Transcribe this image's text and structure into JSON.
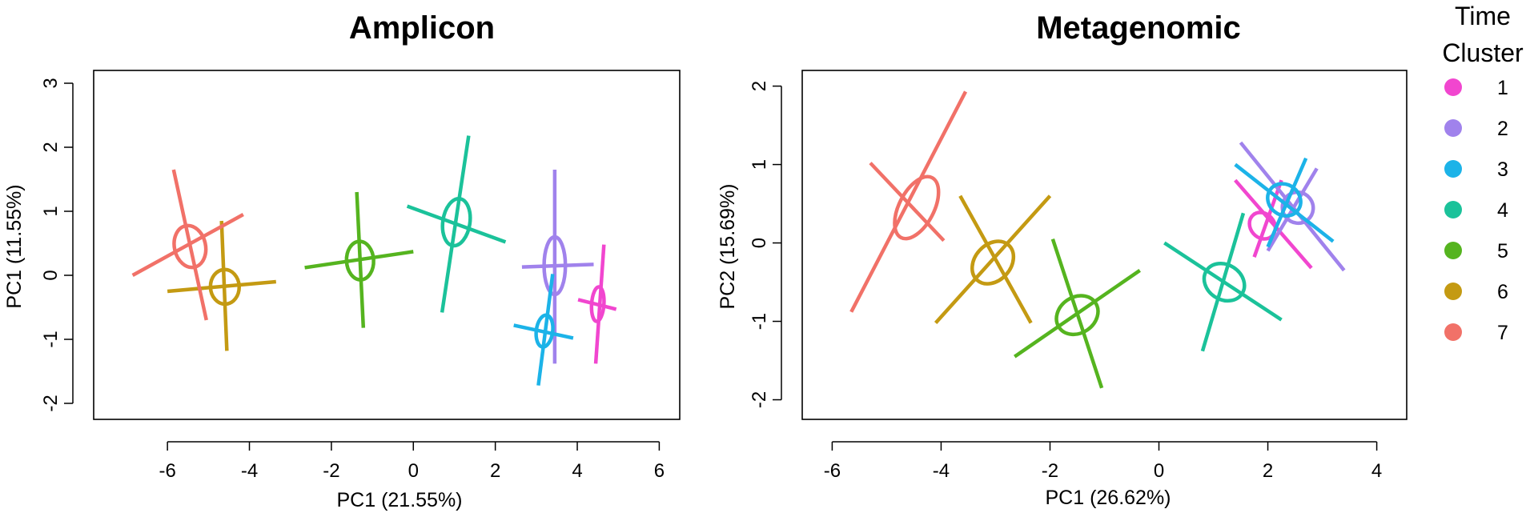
{
  "chart_data": [
    {
      "type": "scatter",
      "title": "Amplicon",
      "xlabel": "PC1 (21.55%)",
      "ylabel": "PC1 (11.55%)",
      "xlim": [
        -7.8,
        6.5
      ],
      "ylim": [
        -2.25,
        3.2
      ],
      "xticks": [
        -6,
        -4,
        -2,
        0,
        2,
        4,
        6
      ],
      "yticks": [
        -2,
        -1,
        0,
        1,
        2,
        3
      ],
      "xtick_labels": [
        "-6",
        "-4",
        "-2",
        "0",
        "2",
        "4",
        "6"
      ],
      "ytick_labels": [
        "-2",
        "-1",
        "0",
        "1",
        "2",
        "3"
      ],
      "grid": false,
      "series": [
        {
          "name": "1",
          "color": "#f146cf",
          "center": [
            4.5,
            -0.45
          ],
          "ellipse_radii": [
            0.15,
            0.27
          ],
          "axis1": [
            [
              4.45,
              -1.38
            ],
            [
              4.65,
              0.48
            ]
          ],
          "axis2": [
            [
              4.02,
              -0.38
            ],
            [
              4.95,
              -0.53
            ]
          ]
        },
        {
          "name": "2",
          "color": "#a082ec",
          "center": [
            3.45,
            0.15
          ],
          "ellipse_radii": [
            0.26,
            0.45
          ],
          "axis1": [
            [
              3.45,
              -1.38
            ],
            [
              3.45,
              1.65
            ]
          ],
          "axis2": [
            [
              2.65,
              0.13
            ],
            [
              4.4,
              0.17
            ]
          ]
        },
        {
          "name": "3",
          "color": "#1cb3e8",
          "center": [
            3.2,
            -0.87
          ],
          "ellipse_radii": [
            0.2,
            0.25
          ],
          "axis1": [
            [
              3.05,
              -1.72
            ],
            [
              3.4,
              0.02
            ]
          ],
          "axis2": [
            [
              2.45,
              -0.78
            ],
            [
              3.9,
              -0.98
            ]
          ]
        },
        {
          "name": "4",
          "color": "#1bc29a",
          "center": [
            1.05,
            0.83
          ],
          "ellipse_radii": [
            0.33,
            0.37
          ],
          "axis1": [
            [
              0.7,
              -0.58
            ],
            [
              1.35,
              2.18
            ]
          ],
          "axis2": [
            [
              -0.15,
              1.08
            ],
            [
              2.25,
              0.52
            ]
          ]
        },
        {
          "name": "5",
          "color": "#55b41f",
          "center": [
            -1.3,
            0.23
          ],
          "ellipse_radii": [
            0.33,
            0.3
          ],
          "axis1": [
            [
              -1.38,
              1.3
            ],
            [
              -1.22,
              -0.82
            ]
          ],
          "axis2": [
            [
              -2.65,
              0.12
            ],
            [
              0,
              0.37
            ]
          ]
        },
        {
          "name": "6",
          "color": "#c49a12",
          "center": [
            -4.6,
            -0.18
          ],
          "ellipse_radii": [
            0.35,
            0.27
          ],
          "axis1": [
            [
              -4.68,
              0.85
            ],
            [
              -4.55,
              -1.18
            ]
          ],
          "axis2": [
            [
              -6.0,
              -0.25
            ],
            [
              -3.35,
              -0.1
            ]
          ]
        },
        {
          "name": "7",
          "color": "#f17168",
          "center": [
            -5.45,
            0.45
          ],
          "ellipse_radii": [
            0.38,
            0.33
          ],
          "axis1": [
            [
              -5.85,
              1.65
            ],
            [
              -5.05,
              -0.7
            ]
          ],
          "axis2": [
            [
              -6.85,
              0.0
            ],
            [
              -4.15,
              0.95
            ]
          ]
        }
      ]
    },
    {
      "type": "scatter",
      "title": "Metagenomic",
      "xlabel": "PC1 (26.62%)",
      "ylabel": "PC2 (15.69%)",
      "xlim": [
        -6.55,
        4.55
      ],
      "ylim": [
        -2.25,
        2.2
      ],
      "xticks": [
        -6,
        -4,
        -2,
        0,
        2,
        4
      ],
      "yticks": [
        -2,
        -1,
        0,
        1,
        2
      ],
      "xtick_labels": [
        "-6",
        "-4",
        "-2",
        "0",
        "2",
        "4"
      ],
      "ytick_labels": [
        "-2",
        "-1",
        "0",
        "1",
        "2"
      ],
      "grid": false,
      "series": [
        {
          "name": "1",
          "color": "#f146cf",
          "center": [
            1.9,
            0.22
          ],
          "ellipse_radii": [
            0.22,
            0.18
          ],
          "axis1": [
            [
              1.4,
              0.8
            ],
            [
              2.8,
              -0.32
            ]
          ],
          "axis2": [
            [
              1.75,
              -0.18
            ],
            [
              2.25,
              0.8
            ]
          ]
        },
        {
          "name": "2",
          "color": "#a082ec",
          "center": [
            2.55,
            0.45
          ],
          "ellipse_radii": [
            0.28,
            0.2
          ],
          "axis1": [
            [
              1.5,
              1.28
            ],
            [
              3.4,
              -0.35
            ]
          ],
          "axis2": [
            [
              2.0,
              -0.1
            ],
            [
              2.9,
              0.95
            ]
          ]
        },
        {
          "name": "3",
          "color": "#1cb3e8",
          "center": [
            2.3,
            0.55
          ],
          "ellipse_radii": [
            0.28,
            0.22
          ],
          "axis1": [
            [
              1.4,
              1.0
            ],
            [
              3.2,
              0.02
            ]
          ],
          "axis2": [
            [
              2.0,
              -0.05
            ],
            [
              2.7,
              1.08
            ]
          ]
        },
        {
          "name": "4",
          "color": "#1bc29a",
          "center": [
            1.2,
            -0.5
          ],
          "ellipse_radii": [
            0.32,
            0.27
          ],
          "axis1": [
            [
              0.1,
              0.0
            ],
            [
              2.25,
              -0.98
            ]
          ],
          "axis2": [
            [
              0.8,
              -1.38
            ],
            [
              1.55,
              0.38
            ]
          ]
        },
        {
          "name": "5",
          "color": "#55b41f",
          "center": [
            -1.5,
            -0.92
          ],
          "ellipse_radii": [
            0.33,
            0.28
          ],
          "axis1": [
            [
              -2.65,
              -1.45
            ],
            [
              -0.35,
              -0.35
            ]
          ],
          "axis2": [
            [
              -1.95,
              0.05
            ],
            [
              -1.05,
              -1.85
            ]
          ]
        },
        {
          "name": "6",
          "color": "#c49a12",
          "center": [
            -3.05,
            -0.25
          ],
          "ellipse_radii": [
            0.33,
            0.3
          ],
          "axis1": [
            [
              -4.1,
              -1.02
            ],
            [
              -2.0,
              0.6
            ]
          ],
          "axis2": [
            [
              -3.65,
              0.6
            ],
            [
              -2.35,
              -1.02
            ]
          ]
        },
        {
          "name": "7",
          "color": "#f17168",
          "center": [
            -4.45,
            0.45
          ],
          "ellipse_radii": [
            0.32,
            0.43
          ],
          "axis1": [
            [
              -5.65,
              -0.88
            ],
            [
              -3.55,
              1.93
            ]
          ],
          "axis2": [
            [
              -5.3,
              1.02
            ],
            [
              -3.95,
              0.03
            ]
          ]
        }
      ]
    }
  ],
  "legend": {
    "title_line1": "Time",
    "title_line2": "Cluster",
    "position": "right",
    "items": [
      {
        "label": "1",
        "color": "#f146cf"
      },
      {
        "label": "2",
        "color": "#a082ec"
      },
      {
        "label": "3",
        "color": "#1cb3e8"
      },
      {
        "label": "4",
        "color": "#1bc29a"
      },
      {
        "label": "5",
        "color": "#55b41f"
      },
      {
        "label": "6",
        "color": "#c49a12"
      },
      {
        "label": "7",
        "color": "#f17168"
      }
    ]
  }
}
